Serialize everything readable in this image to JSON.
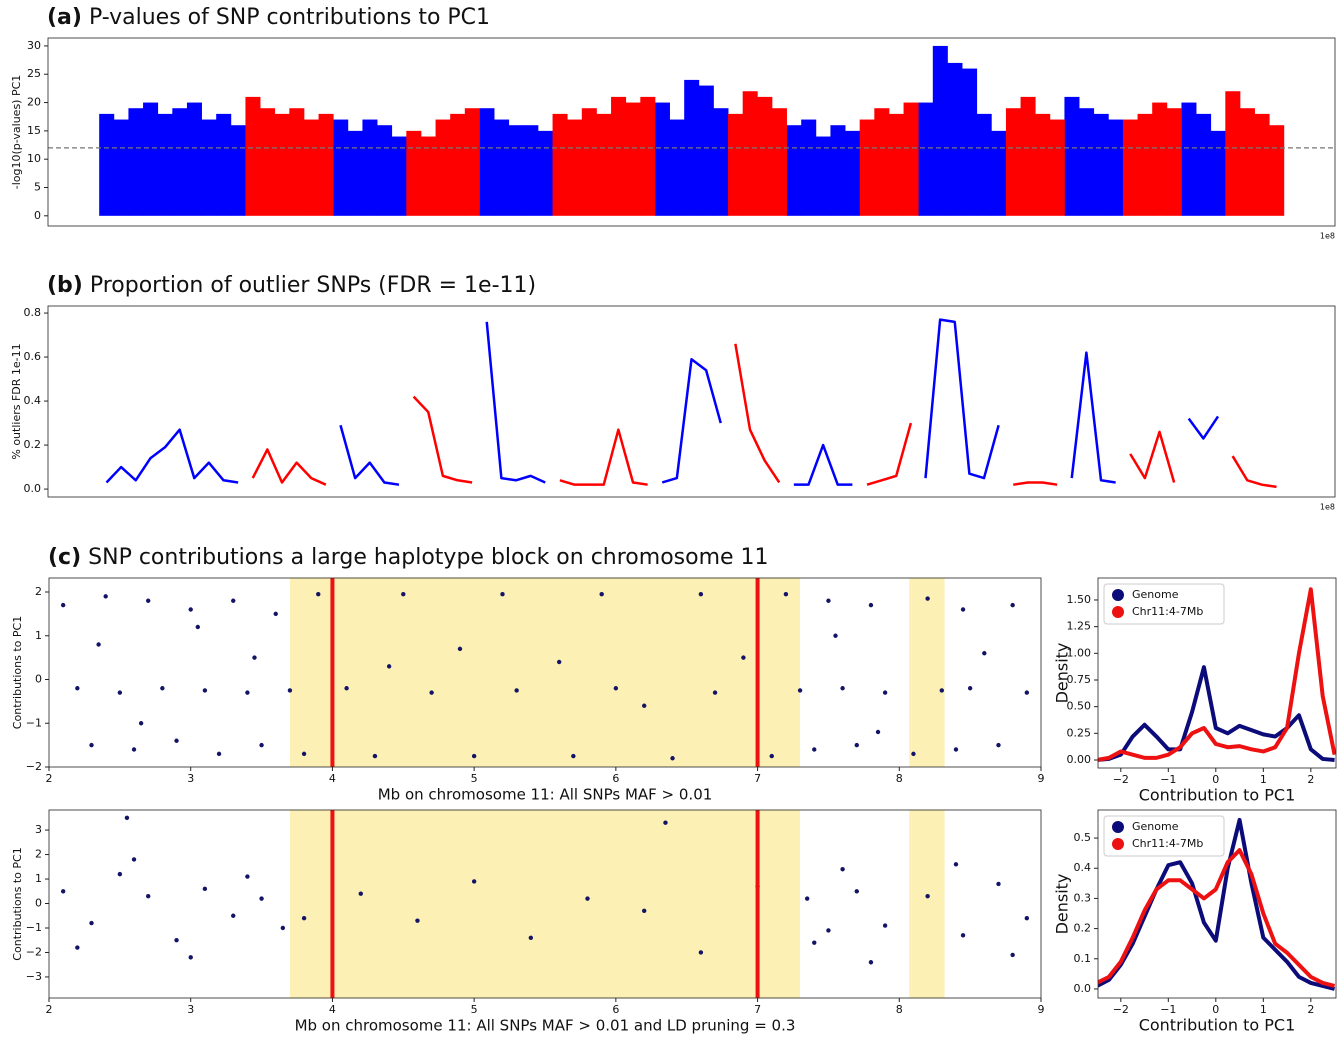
{
  "chart_data": [
    {
      "type": "manhattan",
      "label": "(a)",
      "title": "P-values of SNP contributions to PC1",
      "ylabel": "-log10(p-values) PC1",
      "offset_label": "1e8",
      "xlim": [
        0,
        8.8
      ],
      "ylim": [
        -1.8,
        31.4
      ],
      "yticks": [
        0,
        5,
        10,
        15,
        20,
        25,
        30
      ],
      "threshold": 12,
      "x": [
        0.4,
        0.5,
        0.6,
        0.7,
        0.8,
        0.9,
        1.0,
        1.1,
        1.2,
        1.3,
        1.4,
        1.5,
        1.6,
        1.7,
        1.8,
        1.9,
        2.0,
        2.1,
        2.2,
        2.3,
        2.4,
        2.5,
        2.6,
        2.7,
        2.8,
        2.9,
        3.0,
        3.1,
        3.2,
        3.3,
        3.4,
        3.5,
        3.6,
        3.7,
        3.8,
        3.9,
        4.0,
        4.1,
        4.2,
        4.3,
        4.4,
        4.5,
        4.6,
        4.7,
        4.8,
        4.9,
        5.0,
        5.1,
        5.2,
        5.3,
        5.4,
        5.5,
        5.6,
        5.7,
        5.8,
        5.9,
        6.0,
        6.1,
        6.2,
        6.3,
        6.4,
        6.5,
        6.6,
        6.7,
        6.8,
        6.9,
        7.0,
        7.1,
        7.2,
        7.3,
        7.4,
        7.5,
        7.6,
        7.7,
        7.8,
        7.9,
        8.0,
        8.1,
        8.2,
        8.3,
        8.4
      ],
      "series": [
        {
          "color": "#0000ff",
          "values": [
            18,
            17,
            19,
            20,
            18,
            19,
            20,
            17,
            18,
            16,
            null,
            null,
            null,
            null,
            null,
            null,
            17,
            15,
            17,
            16,
            14,
            null,
            null,
            null,
            null,
            null,
            19,
            17,
            16,
            16,
            15,
            null,
            null,
            null,
            null,
            null,
            null,
            null,
            20,
            17,
            24,
            23,
            19,
            null,
            null,
            null,
            null,
            16,
            17,
            14,
            16,
            15,
            null,
            null,
            null,
            null,
            20,
            30,
            27,
            26,
            18,
            15,
            null,
            null,
            null,
            null,
            21,
            19,
            18,
            17,
            null,
            null,
            null,
            null,
            20,
            18,
            15,
            null,
            null,
            null,
            null
          ]
        },
        {
          "color": "#ff0000",
          "values": [
            null,
            null,
            null,
            null,
            null,
            null,
            null,
            null,
            null,
            null,
            21,
            19,
            18,
            19,
            17,
            18,
            null,
            null,
            null,
            null,
            null,
            15,
            14,
            17,
            18,
            19,
            null,
            null,
            null,
            null,
            null,
            18,
            17,
            19,
            18,
            21,
            20,
            21,
            null,
            null,
            null,
            null,
            null,
            18,
            22,
            21,
            19,
            null,
            null,
            null,
            null,
            null,
            17,
            19,
            18,
            20,
            null,
            null,
            null,
            null,
            null,
            null,
            19,
            21,
            18,
            17,
            null,
            null,
            null,
            null,
            17,
            18,
            20,
            19,
            null,
            null,
            null,
            22,
            19,
            18,
            16
          ]
        }
      ]
    },
    {
      "type": "line",
      "label": "(b)",
      "title": "Proportion of outlier SNPs (FDR = 1e-11)",
      "ylabel": "% outliers FDR 1e-11",
      "offset_label": "1e8",
      "xlim": [
        0,
        8.8
      ],
      "ylim": [
        -0.036,
        0.832
      ],
      "yticks": [
        {
          "value": 0,
          "label": "0.0"
        },
        0.2,
        0.4,
        0.6,
        0.8
      ],
      "line_width": 2.5,
      "x": [
        0.4,
        0.5,
        0.6,
        0.7,
        0.8,
        0.9,
        1.0,
        1.1,
        1.2,
        1.3,
        1.4,
        1.5,
        1.6,
        1.7,
        1.8,
        1.9,
        2.0,
        2.1,
        2.2,
        2.3,
        2.4,
        2.5,
        2.6,
        2.7,
        2.8,
        2.9,
        3.0,
        3.1,
        3.2,
        3.3,
        3.4,
        3.5,
        3.6,
        3.7,
        3.8,
        3.9,
        4.0,
        4.1,
        4.2,
        4.3,
        4.4,
        4.5,
        4.6,
        4.7,
        4.8,
        4.9,
        5.0,
        5.1,
        5.2,
        5.3,
        5.4,
        5.5,
        5.6,
        5.7,
        5.8,
        5.9,
        6.0,
        6.1,
        6.2,
        6.3,
        6.4,
        6.5,
        6.6,
        6.7,
        6.8,
        6.9,
        7.0,
        7.1,
        7.2,
        7.3,
        7.4,
        7.5,
        7.6,
        7.7,
        7.8,
        7.9,
        8.0,
        8.1,
        8.2,
        8.3,
        8.4
      ],
      "series": [
        {
          "color": "#0000ff",
          "values": [
            0.03,
            0.1,
            0.04,
            0.14,
            0.19,
            0.27,
            0.05,
            0.12,
            0.04,
            0.03,
            null,
            null,
            null,
            null,
            null,
            null,
            0.29,
            0.05,
            0.12,
            0.03,
            0.02,
            null,
            null,
            null,
            null,
            null,
            0.76,
            0.05,
            0.04,
            0.06,
            0.03,
            null,
            null,
            null,
            null,
            null,
            null,
            null,
            0.03,
            0.05,
            0.59,
            0.54,
            0.3,
            null,
            null,
            null,
            null,
            0.02,
            0.02,
            0.2,
            0.02,
            0.02,
            null,
            null,
            null,
            null,
            0.05,
            0.77,
            0.76,
            0.07,
            0.05,
            0.29,
            null,
            null,
            null,
            null,
            0.05,
            0.62,
            0.04,
            0.03,
            null,
            null,
            null,
            null,
            0.32,
            0.23,
            0.33,
            null,
            null,
            null,
            null
          ]
        },
        {
          "color": "#ff0000",
          "values": [
            null,
            null,
            null,
            null,
            null,
            null,
            null,
            null,
            null,
            null,
            0.05,
            0.18,
            0.03,
            0.12,
            0.05,
            0.02,
            null,
            null,
            null,
            null,
            null,
            0.42,
            0.35,
            0.06,
            0.04,
            0.03,
            null,
            null,
            null,
            null,
            null,
            0.04,
            0.02,
            0.02,
            0.02,
            0.27,
            0.03,
            0.02,
            null,
            null,
            null,
            null,
            null,
            0.66,
            0.27,
            0.13,
            0.03,
            null,
            null,
            null,
            null,
            null,
            0.02,
            0.04,
            0.06,
            0.3,
            null,
            null,
            null,
            null,
            null,
            null,
            0.02,
            0.03,
            0.03,
            0.02,
            null,
            null,
            null,
            null,
            0.16,
            0.05,
            0.26,
            0.03,
            null,
            null,
            null,
            0.15,
            0.04,
            0.02,
            0.01
          ]
        }
      ]
    },
    {
      "type": "scatter",
      "label": "(c)",
      "title": "SNP contributions a large haplotype block on chromosome 11",
      "ylabel": "Contributions to PC1",
      "xlabel": "Mb on chromosome 11: All SNPs MAF > 0.01",
      "xlim": [
        2,
        9
      ],
      "ylim": [
        -2,
        2.32
      ],
      "xticks": [
        2,
        3,
        4,
        5,
        6,
        7,
        8,
        9
      ],
      "yticks": [
        {
          "value": -2,
          "label": "−2"
        },
        {
          "value": -1,
          "label": "−1"
        },
        0,
        1,
        2
      ],
      "spans": [
        [
          3.7,
          7.3
        ],
        [
          8.07,
          8.32
        ]
      ],
      "span_color": "#fdf0b4",
      "vlines": [
        4,
        7
      ],
      "vline_color": "#ee1111",
      "color": "#141466",
      "x": [
        2.1,
        2.4,
        2.7,
        3.0,
        3.3,
        3.6,
        3.9,
        4.5,
        5.2,
        5.9,
        6.6,
        7.2,
        7.5,
        7.8,
        8.2,
        8.45,
        8.8,
        2.2,
        2.5,
        2.8,
        3.1,
        3.4,
        3.7,
        4.1,
        4.7,
        5.3,
        6.0,
        6.7,
        7.3,
        7.6,
        7.9,
        8.3,
        8.5,
        8.9,
        2.3,
        2.6,
        2.9,
        3.2,
        3.5,
        3.8,
        4.3,
        5.0,
        5.7,
        6.4,
        7.1,
        7.4,
        7.7,
        8.1,
        8.4,
        8.7,
        2.35,
        2.65,
        3.05,
        3.45,
        4.4,
        4.9,
        5.6,
        6.2,
        6.9,
        7.55,
        7.85,
        8.6
      ],
      "values": [
        1.7,
        1.9,
        1.8,
        1.6,
        1.8,
        1.5,
        1.95,
        1.95,
        1.95,
        1.95,
        1.95,
        1.95,
        1.8,
        1.7,
        1.85,
        1.6,
        1.7,
        -0.2,
        -0.3,
        -0.2,
        -0.25,
        -0.3,
        -0.25,
        -0.2,
        -0.3,
        -0.25,
        -0.2,
        -0.3,
        -0.25,
        -0.2,
        -0.3,
        -0.25,
        -0.2,
        -0.3,
        -1.5,
        -1.6,
        -1.4,
        -1.7,
        -1.5,
        -1.7,
        -1.75,
        -1.75,
        -1.75,
        -1.8,
        -1.75,
        -1.6,
        -1.5,
        -1.7,
        -1.6,
        -1.5,
        0.8,
        -1.0,
        1.2,
        0.5,
        0.3,
        0.7,
        0.4,
        -0.6,
        0.5,
        1.0,
        -1.2,
        0.6
      ]
    },
    {
      "type": "scatter",
      "ylabel": "Contributions to PC1",
      "xlabel": "Mb on chromosome 11: All SNPs MAF > 0.01 and LD pruning = 0.3",
      "xlim": [
        2,
        9
      ],
      "ylim": [
        -3.86,
        3.82
      ],
      "xticks": [
        2,
        3,
        4,
        5,
        6,
        7,
        8,
        9
      ],
      "yticks": [
        {
          "value": -3,
          "label": "−3"
        },
        {
          "value": -2,
          "label": "−2"
        },
        {
          "value": -1,
          "label": "−1"
        },
        0,
        1,
        2,
        3
      ],
      "spans": [
        [
          3.7,
          7.3
        ],
        [
          8.07,
          8.32
        ]
      ],
      "span_color": "#fdf0b4",
      "vlines": [
        4,
        7
      ],
      "vline_color": "#ee1111",
      "color": "#141466",
      "x": [
        2.1,
        2.3,
        2.5,
        2.7,
        2.9,
        3.1,
        3.3,
        3.5,
        3.65,
        3.8,
        4.2,
        4.6,
        5.0,
        5.4,
        5.8,
        6.2,
        6.6,
        7.0,
        7.35,
        7.5,
        7.7,
        7.9,
        8.2,
        8.45,
        8.7,
        8.9,
        2.2,
        2.6,
        3.0,
        3.4,
        7.4,
        7.6,
        7.8,
        8.4,
        8.8,
        2.55,
        6.35
      ],
      "values": [
        0.5,
        -0.8,
        1.2,
        0.3,
        -1.5,
        0.6,
        -0.5,
        0.2,
        -1.0,
        -0.6,
        0.4,
        -0.7,
        0.9,
        -1.4,
        0.2,
        -0.3,
        -2.0,
        0.7,
        0.2,
        -1.1,
        0.5,
        -0.9,
        0.3,
        -1.3,
        0.8,
        -0.6,
        -1.8,
        1.8,
        -2.2,
        1.1,
        -1.6,
        1.4,
        -2.4,
        1.6,
        -2.1,
        3.5,
        3.3
      ]
    },
    {
      "type": "line",
      "ylabel": "Density",
      "xlabel": "Contribution to PC1",
      "legend": "upper left",
      "line_width": 4,
      "xlim": [
        -2.48,
        2.53
      ],
      "ylim": [
        -0.075,
        1.706
      ],
      "xticks": [
        {
          "value": -2,
          "label": "−2"
        },
        {
          "value": -1,
          "label": "−1"
        },
        0,
        1,
        2
      ],
      "yticks": [
        {
          "value": 0,
          "label": "0.00"
        },
        0.25,
        {
          "value": 0.5,
          "label": "0.50"
        },
        0.75,
        {
          "value": 1,
          "label": "1.00"
        },
        1.25,
        {
          "value": 1.5,
          "label": "1.50"
        }
      ],
      "x": [
        -2.5,
        -2.25,
        -2,
        -1.75,
        -1.5,
        -1.25,
        -1,
        -0.75,
        -0.5,
        -0.25,
        0,
        0.25,
        0.5,
        0.75,
        1,
        1.25,
        1.5,
        1.75,
        2,
        2.25,
        2.5
      ],
      "series": [
        {
          "name": "Genome",
          "color": "#0b0b7a",
          "values": [
            0,
            0.01,
            0.05,
            0.22,
            0.33,
            0.22,
            0.1,
            0.1,
            0.45,
            0.87,
            0.3,
            0.25,
            0.32,
            0.28,
            0.24,
            0.22,
            0.3,
            0.42,
            0.1,
            0.01,
            0
          ]
        },
        {
          "name": "Chr11:4-7Mb",
          "color": "#ee1111",
          "values": [
            0,
            0.02,
            0.08,
            0.05,
            0.02,
            0.02,
            0.05,
            0.12,
            0.25,
            0.3,
            0.15,
            0.12,
            0.13,
            0.1,
            0.08,
            0.12,
            0.3,
            1.0,
            1.6,
            0.6,
            0.05
          ]
        }
      ]
    },
    {
      "type": "line",
      "ylabel": "Density",
      "xlabel": "Contribution to PC1",
      "legend": "upper left",
      "line_width": 4,
      "xlim": [
        -2.48,
        2.53
      ],
      "ylim": [
        -0.03,
        0.593
      ],
      "xticks": [
        {
          "value": -2,
          "label": "−2"
        },
        {
          "value": -1,
          "label": "−1"
        },
        0,
        1,
        2
      ],
      "yticks": [
        {
          "value": 0,
          "label": "0.0"
        },
        0.1,
        0.2,
        0.3,
        0.4,
        0.5
      ],
      "x": [
        -2.5,
        -2.25,
        -2,
        -1.75,
        -1.5,
        -1.25,
        -1,
        -0.75,
        -0.5,
        -0.25,
        0,
        0.25,
        0.5,
        0.75,
        1,
        1.25,
        1.5,
        1.75,
        2,
        2.25,
        2.5
      ],
      "series": [
        {
          "name": "Genome",
          "color": "#0b0b7a",
          "values": [
            0.01,
            0.03,
            0.08,
            0.15,
            0.24,
            0.33,
            0.41,
            0.42,
            0.35,
            0.22,
            0.16,
            0.4,
            0.56,
            0.35,
            0.17,
            0.13,
            0.09,
            0.04,
            0.02,
            0.01,
            0
          ]
        },
        {
          "name": "Chr11:4-7Mb",
          "color": "#ee1111",
          "values": [
            0.02,
            0.04,
            0.09,
            0.17,
            0.26,
            0.33,
            0.36,
            0.36,
            0.33,
            0.3,
            0.33,
            0.42,
            0.46,
            0.38,
            0.25,
            0.15,
            0.12,
            0.08,
            0.04,
            0.02,
            0.01
          ]
        }
      ]
    }
  ]
}
